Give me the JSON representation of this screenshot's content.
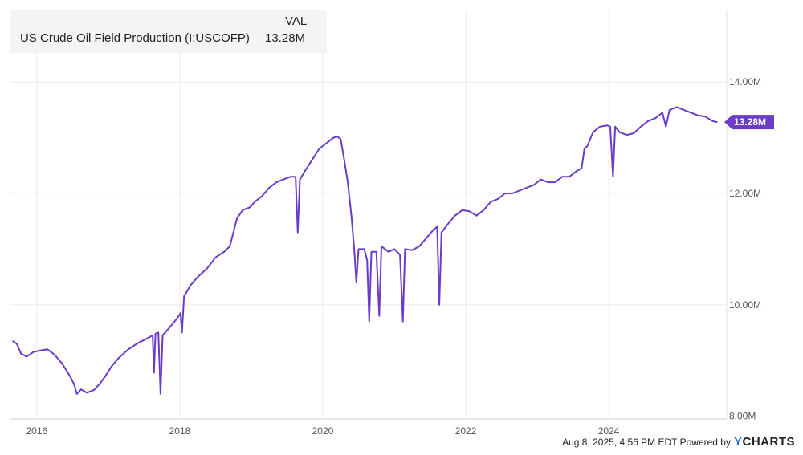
{
  "chart_data": {
    "type": "line",
    "series": [
      {
        "name": "US Crude Oil Field Production (I:USCOFP)",
        "color": "#6a3cc8",
        "points": [
          [
            2015.66,
            9.35
          ],
          [
            2015.72,
            9.3
          ],
          [
            2015.78,
            9.12
          ],
          [
            2015.86,
            9.07
          ],
          [
            2015.95,
            9.15
          ],
          [
            2016.05,
            9.18
          ],
          [
            2016.15,
            9.2
          ],
          [
            2016.25,
            9.1
          ],
          [
            2016.35,
            8.95
          ],
          [
            2016.45,
            8.75
          ],
          [
            2016.52,
            8.58
          ],
          [
            2016.56,
            8.4
          ],
          [
            2016.62,
            8.48
          ],
          [
            2016.7,
            8.42
          ],
          [
            2016.8,
            8.47
          ],
          [
            2016.88,
            8.58
          ],
          [
            2016.96,
            8.72
          ],
          [
            2017.05,
            8.9
          ],
          [
            2017.15,
            9.05
          ],
          [
            2017.28,
            9.2
          ],
          [
            2017.4,
            9.3
          ],
          [
            2017.55,
            9.4
          ],
          [
            2017.62,
            9.45
          ],
          [
            2017.64,
            8.78
          ],
          [
            2017.66,
            9.48
          ],
          [
            2017.7,
            9.5
          ],
          [
            2017.73,
            8.4
          ],
          [
            2017.76,
            9.45
          ],
          [
            2017.85,
            9.58
          ],
          [
            2017.96,
            9.75
          ],
          [
            2018.01,
            9.85
          ],
          [
            2018.03,
            9.5
          ],
          [
            2018.06,
            10.15
          ],
          [
            2018.15,
            10.35
          ],
          [
            2018.25,
            10.5
          ],
          [
            2018.38,
            10.65
          ],
          [
            2018.5,
            10.85
          ],
          [
            2018.62,
            10.95
          ],
          [
            2018.7,
            11.05
          ],
          [
            2018.8,
            11.55
          ],
          [
            2018.88,
            11.7
          ],
          [
            2018.98,
            11.75
          ],
          [
            2019.05,
            11.85
          ],
          [
            2019.15,
            11.95
          ],
          [
            2019.25,
            12.1
          ],
          [
            2019.35,
            12.2
          ],
          [
            2019.45,
            12.25
          ],
          [
            2019.55,
            12.3
          ],
          [
            2019.62,
            12.3
          ],
          [
            2019.65,
            11.3
          ],
          [
            2019.68,
            12.25
          ],
          [
            2019.75,
            12.4
          ],
          [
            2019.85,
            12.6
          ],
          [
            2019.95,
            12.8
          ],
          [
            2020.05,
            12.9
          ],
          [
            2020.15,
            13.0
          ],
          [
            2020.2,
            13.02
          ],
          [
            2020.25,
            12.98
          ],
          [
            2020.3,
            12.6
          ],
          [
            2020.35,
            12.2
          ],
          [
            2020.4,
            11.6
          ],
          [
            2020.44,
            11.0
          ],
          [
            2020.47,
            10.4
          ],
          [
            2020.5,
            11.0
          ],
          [
            2020.58,
            11.0
          ],
          [
            2020.62,
            10.8
          ],
          [
            2020.65,
            9.7
          ],
          [
            2020.68,
            10.95
          ],
          [
            2020.75,
            10.95
          ],
          [
            2020.79,
            9.8
          ],
          [
            2020.82,
            11.05
          ],
          [
            2020.92,
            10.95
          ],
          [
            2021.0,
            11.0
          ],
          [
            2021.08,
            10.9
          ],
          [
            2021.12,
            9.7
          ],
          [
            2021.15,
            11.0
          ],
          [
            2021.25,
            10.98
          ],
          [
            2021.35,
            11.05
          ],
          [
            2021.45,
            11.2
          ],
          [
            2021.55,
            11.35
          ],
          [
            2021.6,
            11.4
          ],
          [
            2021.63,
            10.0
          ],
          [
            2021.66,
            11.3
          ],
          [
            2021.75,
            11.45
          ],
          [
            2021.85,
            11.6
          ],
          [
            2021.95,
            11.7
          ],
          [
            2022.05,
            11.68
          ],
          [
            2022.15,
            11.6
          ],
          [
            2022.25,
            11.7
          ],
          [
            2022.35,
            11.85
          ],
          [
            2022.45,
            11.9
          ],
          [
            2022.55,
            12.0
          ],
          [
            2022.65,
            12.0
          ],
          [
            2022.75,
            12.05
          ],
          [
            2022.85,
            12.1
          ],
          [
            2022.95,
            12.15
          ],
          [
            2023.05,
            12.25
          ],
          [
            2023.15,
            12.2
          ],
          [
            2023.25,
            12.2
          ],
          [
            2023.35,
            12.3
          ],
          [
            2023.45,
            12.3
          ],
          [
            2023.55,
            12.4
          ],
          [
            2023.62,
            12.45
          ],
          [
            2023.66,
            12.8
          ],
          [
            2023.7,
            12.85
          ],
          [
            2023.78,
            13.1
          ],
          [
            2023.88,
            13.2
          ],
          [
            2023.98,
            13.22
          ],
          [
            2024.02,
            13.2
          ],
          [
            2024.06,
            12.3
          ],
          [
            2024.09,
            13.2
          ],
          [
            2024.15,
            13.1
          ],
          [
            2024.25,
            13.05
          ],
          [
            2024.35,
            13.08
          ],
          [
            2024.45,
            13.2
          ],
          [
            2024.55,
            13.3
          ],
          [
            2024.65,
            13.35
          ],
          [
            2024.75,
            13.45
          ],
          [
            2024.8,
            13.2
          ],
          [
            2024.85,
            13.5
          ],
          [
            2024.95,
            13.55
          ],
          [
            2025.05,
            13.5
          ],
          [
            2025.15,
            13.45
          ],
          [
            2025.25,
            13.4
          ],
          [
            2025.35,
            13.38
          ],
          [
            2025.45,
            13.3
          ],
          [
            2025.52,
            13.28
          ]
        ]
      }
    ],
    "xlim": [
      2015.62,
      2025.65
    ],
    "ylim": [
      7.95,
      15.3
    ],
    "x_ticks": [
      {
        "v": 2016,
        "label": "2016"
      },
      {
        "v": 2018,
        "label": "2018"
      },
      {
        "v": 2020,
        "label": "2020"
      },
      {
        "v": 2022,
        "label": "2022"
      },
      {
        "v": 2024,
        "label": "2024"
      }
    ],
    "y_ticks": [
      {
        "v": 8,
        "label": "8.00M"
      },
      {
        "v": 10,
        "label": "10.00M"
      },
      {
        "v": 12,
        "label": "12.00M"
      },
      {
        "v": 14,
        "label": "14.00M"
      }
    ],
    "current_value": 13.28,
    "current_label": "13.28M",
    "grid": true,
    "legend": "top-left"
  },
  "legend": {
    "header": "VAL",
    "series_name": "US Crude Oil Field Production (I:USCOFP)",
    "value": "13.28M"
  },
  "footer": {
    "timestamp": "Aug 8, 2025, 4:56 PM EDT Powered by",
    "brand_y": "Y",
    "brand_rest": "CHARTS"
  }
}
